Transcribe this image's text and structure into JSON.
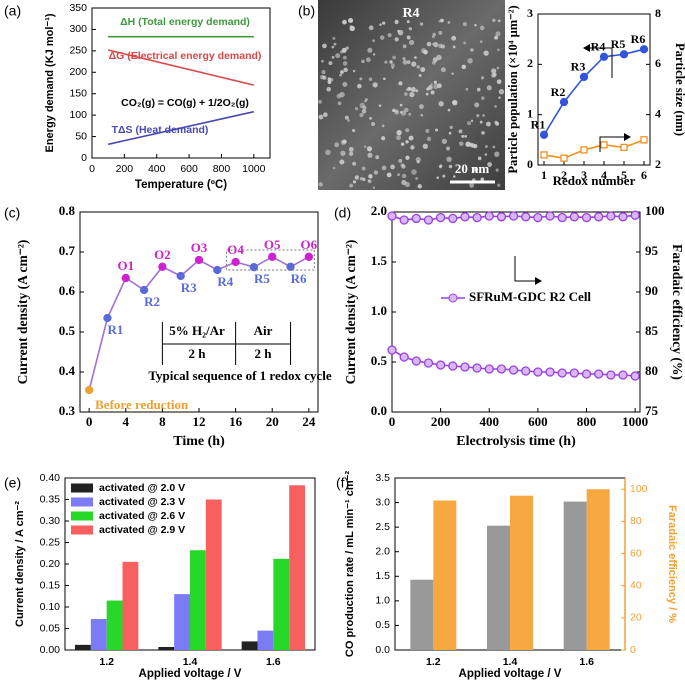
{
  "chart_data": [
    {
      "type": "line",
      "panel_label": "(a)",
      "xlabel": "Temperature (ºC)",
      "ylabel": "Energy demand (KJ mol⁻¹)",
      "x": [
        100,
        1000
      ],
      "xlim": [
        0,
        1100
      ],
      "xticks": [
        0,
        200,
        400,
        600,
        800,
        1000
      ],
      "ylim": [
        0,
        350
      ],
      "yticks": [
        0,
        50,
        100,
        150,
        200,
        250,
        300,
        350
      ],
      "series": [
        {
          "color": "#3c9a3c",
          "values": [
            283,
            283
          ]
        },
        {
          "color": "#d94848",
          "values": [
            252,
            170
          ]
        },
        {
          "color": "#4848b0",
          "values": [
            32,
            108
          ]
        }
      ],
      "annotations": [
        {
          "text": "ΔH (Total energy demand)",
          "color": "#3c9a3c"
        },
        {
          "text": "ΔG (Electrical energy demand)",
          "color": "#d94848"
        },
        {
          "text": "CO₂(g) = CO(g) + 1/2O₂(g)",
          "color": "#000000"
        },
        {
          "text": "TΔS (Heat demand)",
          "color": "#4848b0"
        }
      ]
    },
    {
      "type": "line",
      "panel_label": "(b)",
      "image_label": "R4",
      "scale_bar": "20 nm",
      "xlabel": "Redox number",
      "ylabel": "Particle population (×10⁴ μm⁻²)",
      "y2label": "Particle size (nm)",
      "x": [
        1,
        2,
        3,
        4,
        5,
        6
      ],
      "xlim": [
        0.7,
        6.3
      ],
      "xticks": [
        1,
        2,
        3,
        4,
        5,
        6
      ],
      "ylim": [
        0,
        3
      ],
      "yticks": [
        0,
        1,
        2,
        3
      ],
      "y2lim": [
        2,
        8
      ],
      "y2ticks": [
        2,
        4,
        6,
        8
      ],
      "series": [
        {
          "color": "#3355dd",
          "marker": "circle",
          "values": [
            0.6,
            1.25,
            1.75,
            2.15,
            2.2,
            2.3
          ],
          "point_labels": [
            "R1",
            "R2",
            "R3",
            "R4",
            "R5",
            "R6"
          ]
        },
        {
          "color": "#f09020",
          "marker": "square",
          "axis": "y2",
          "values": [
            2.4,
            2.27,
            2.6,
            2.8,
            2.7,
            3.0
          ]
        }
      ]
    },
    {
      "type": "line",
      "panel_label": "(c)",
      "xlabel": "Time (h)",
      "ylabel": "Current density (A cm⁻²)",
      "x": [
        0,
        2,
        4,
        6,
        8,
        10,
        12,
        14,
        16,
        18,
        20,
        22,
        24
      ],
      "xlim": [
        -1,
        25
      ],
      "xticks": [
        0,
        4,
        8,
        12,
        16,
        20,
        24
      ],
      "ylim": [
        0.3,
        0.8
      ],
      "yticks": [
        0.3,
        0.4,
        0.5,
        0.6,
        0.7,
        0.8
      ],
      "series": [
        {
          "color": "#a070d8",
          "marker": "circle",
          "values": [
            0.355,
            0.535,
            0.635,
            0.605,
            0.663,
            0.64,
            0.68,
            0.655,
            0.675,
            0.662,
            0.688,
            0.663,
            0.688
          ],
          "point_labels": [
            "Before reduction",
            "R1",
            "O1",
            "R2",
            "O2",
            "R3",
            "O3",
            "R4",
            "O4",
            "R5",
            "O5",
            "R6",
            "O6"
          ],
          "marker_colors": [
            "#f0a030",
            "#5a6ad8",
            "#d020d0",
            "#5a6ad8",
            "#d020d0",
            "#5a6ad8",
            "#d020d0",
            "#5a6ad8",
            "#d020d0",
            "#5a6ad8",
            "#d020d0",
            "#5a6ad8",
            "#d020d0"
          ]
        }
      ],
      "annotations": [
        {
          "text": "5% H₂/Ar"
        },
        {
          "text": "2 h"
        },
        {
          "text": "Air"
        },
        {
          "text": "2 h"
        },
        {
          "text": "Typical sequence of 1 redox cycle"
        }
      ]
    },
    {
      "type": "line",
      "panel_label": "(d)",
      "xlabel": "Electrolysis time (h)",
      "ylabel": "Current density (A cm⁻²)",
      "y2label": "Faradaic efficiency (%)",
      "x": [
        0,
        50,
        100,
        150,
        200,
        250,
        300,
        350,
        400,
        450,
        500,
        550,
        600,
        650,
        700,
        750,
        800,
        850,
        900,
        950,
        1000
      ],
      "xlim": [
        0,
        1020
      ],
      "xticks": [
        0,
        200,
        400,
        600,
        800,
        1000
      ],
      "ylim": [
        0,
        2
      ],
      "yticks": [
        {
          "value": 0,
          "label": "0.0"
        },
        0.5,
        {
          "value": 1,
          "label": "1.0"
        },
        1.5,
        {
          "value": 2,
          "label": "2.0"
        }
      ],
      "y2lim": [
        75,
        100
      ],
      "y2ticks": [
        75,
        80,
        85,
        90,
        95,
        100
      ],
      "legend": "center",
      "series": [
        {
          "name": "SFRuM-GDC R2 Cell",
          "color": "#9a40e0",
          "marker": "circle",
          "values": [
            0.62,
            0.55,
            0.51,
            0.49,
            0.47,
            0.46,
            0.45,
            0.44,
            0.43,
            0.43,
            0.42,
            0.41,
            0.4,
            0.4,
            0.39,
            0.39,
            0.38,
            0.38,
            0.37,
            0.37,
            0.36
          ]
        },
        {
          "color": "#9a40e0",
          "marker": "circle",
          "axis": "y2",
          "values": [
            99.5,
            99,
            99.2,
            99,
            99.3,
            99.2,
            99.4,
            99.3,
            99.5,
            99.4,
            99.5,
            99.4,
            99.3,
            99.5,
            99.3,
            99.4,
            99.3,
            99.4,
            99.5,
            99.4,
            99.6
          ]
        }
      ]
    },
    {
      "type": "bar",
      "panel_label": "(e)",
      "xlabel": "Applied voltage / V",
      "ylabel": "Current density / A cm⁻²",
      "categories": [
        "1.2",
        "1.4",
        "1.6"
      ],
      "ylim": [
        0,
        0.4
      ],
      "yticks": [
        {
          "value": 0,
          "label": "0.00"
        },
        {
          "value": 0.05,
          "label": "0.05"
        },
        {
          "value": 0.1,
          "label": "0.10"
        },
        {
          "value": 0.15,
          "label": "0.15"
        },
        {
          "value": 0.2,
          "label": "0.20"
        },
        {
          "value": 0.25,
          "label": "0.25"
        },
        {
          "value": 0.3,
          "label": "0.30"
        },
        {
          "value": 0.35,
          "label": "0.35"
        },
        {
          "value": 0.4,
          "label": "0.40"
        }
      ],
      "legend": "upper left",
      "series": [
        {
          "name": "activated @ 2.0 V",
          "color": "#222222",
          "values": [
            0.012,
            0.007,
            0.02
          ]
        },
        {
          "name": "activated @ 2.3 V",
          "color": "#7b7bf5",
          "values": [
            0.072,
            0.13,
            0.045
          ]
        },
        {
          "name": "activated @ 2.6 V",
          "color": "#28d828",
          "values": [
            0.115,
            0.232,
            0.212
          ]
        },
        {
          "name": "activated @ 2.9 V",
          "color": "#f86060",
          "values": [
            0.205,
            0.35,
            0.383
          ]
        }
      ]
    },
    {
      "type": "bar",
      "panel_label": "(f)",
      "xlabel": "Applied voltage / V",
      "ylabel": "CO production rate / mL min⁻¹ cm⁻²",
      "y2label": "Faradaic efficiency / %",
      "categories": [
        "1.2",
        "1.4",
        "1.6"
      ],
      "ylim": [
        0,
        3.5
      ],
      "yticks": [
        {
          "value": 0,
          "label": "0.0"
        },
        0.5,
        {
          "value": 1,
          "label": "1.0"
        },
        1.5,
        {
          "value": 2,
          "label": "2.0"
        },
        2.5,
        {
          "value": 3,
          "label": "3.0"
        },
        3.5
      ],
      "y2lim": [
        0,
        107
      ],
      "y2ticks": [
        0,
        20,
        40,
        60,
        80,
        100
      ],
      "y2color": "#f5a030",
      "series": [
        {
          "color": "#999999",
          "values": [
            1.43,
            2.53,
            3.02
          ]
        },
        {
          "color": "#f8a840",
          "axis": "y2",
          "values": [
            93,
            96,
            100
          ]
        }
      ]
    }
  ]
}
